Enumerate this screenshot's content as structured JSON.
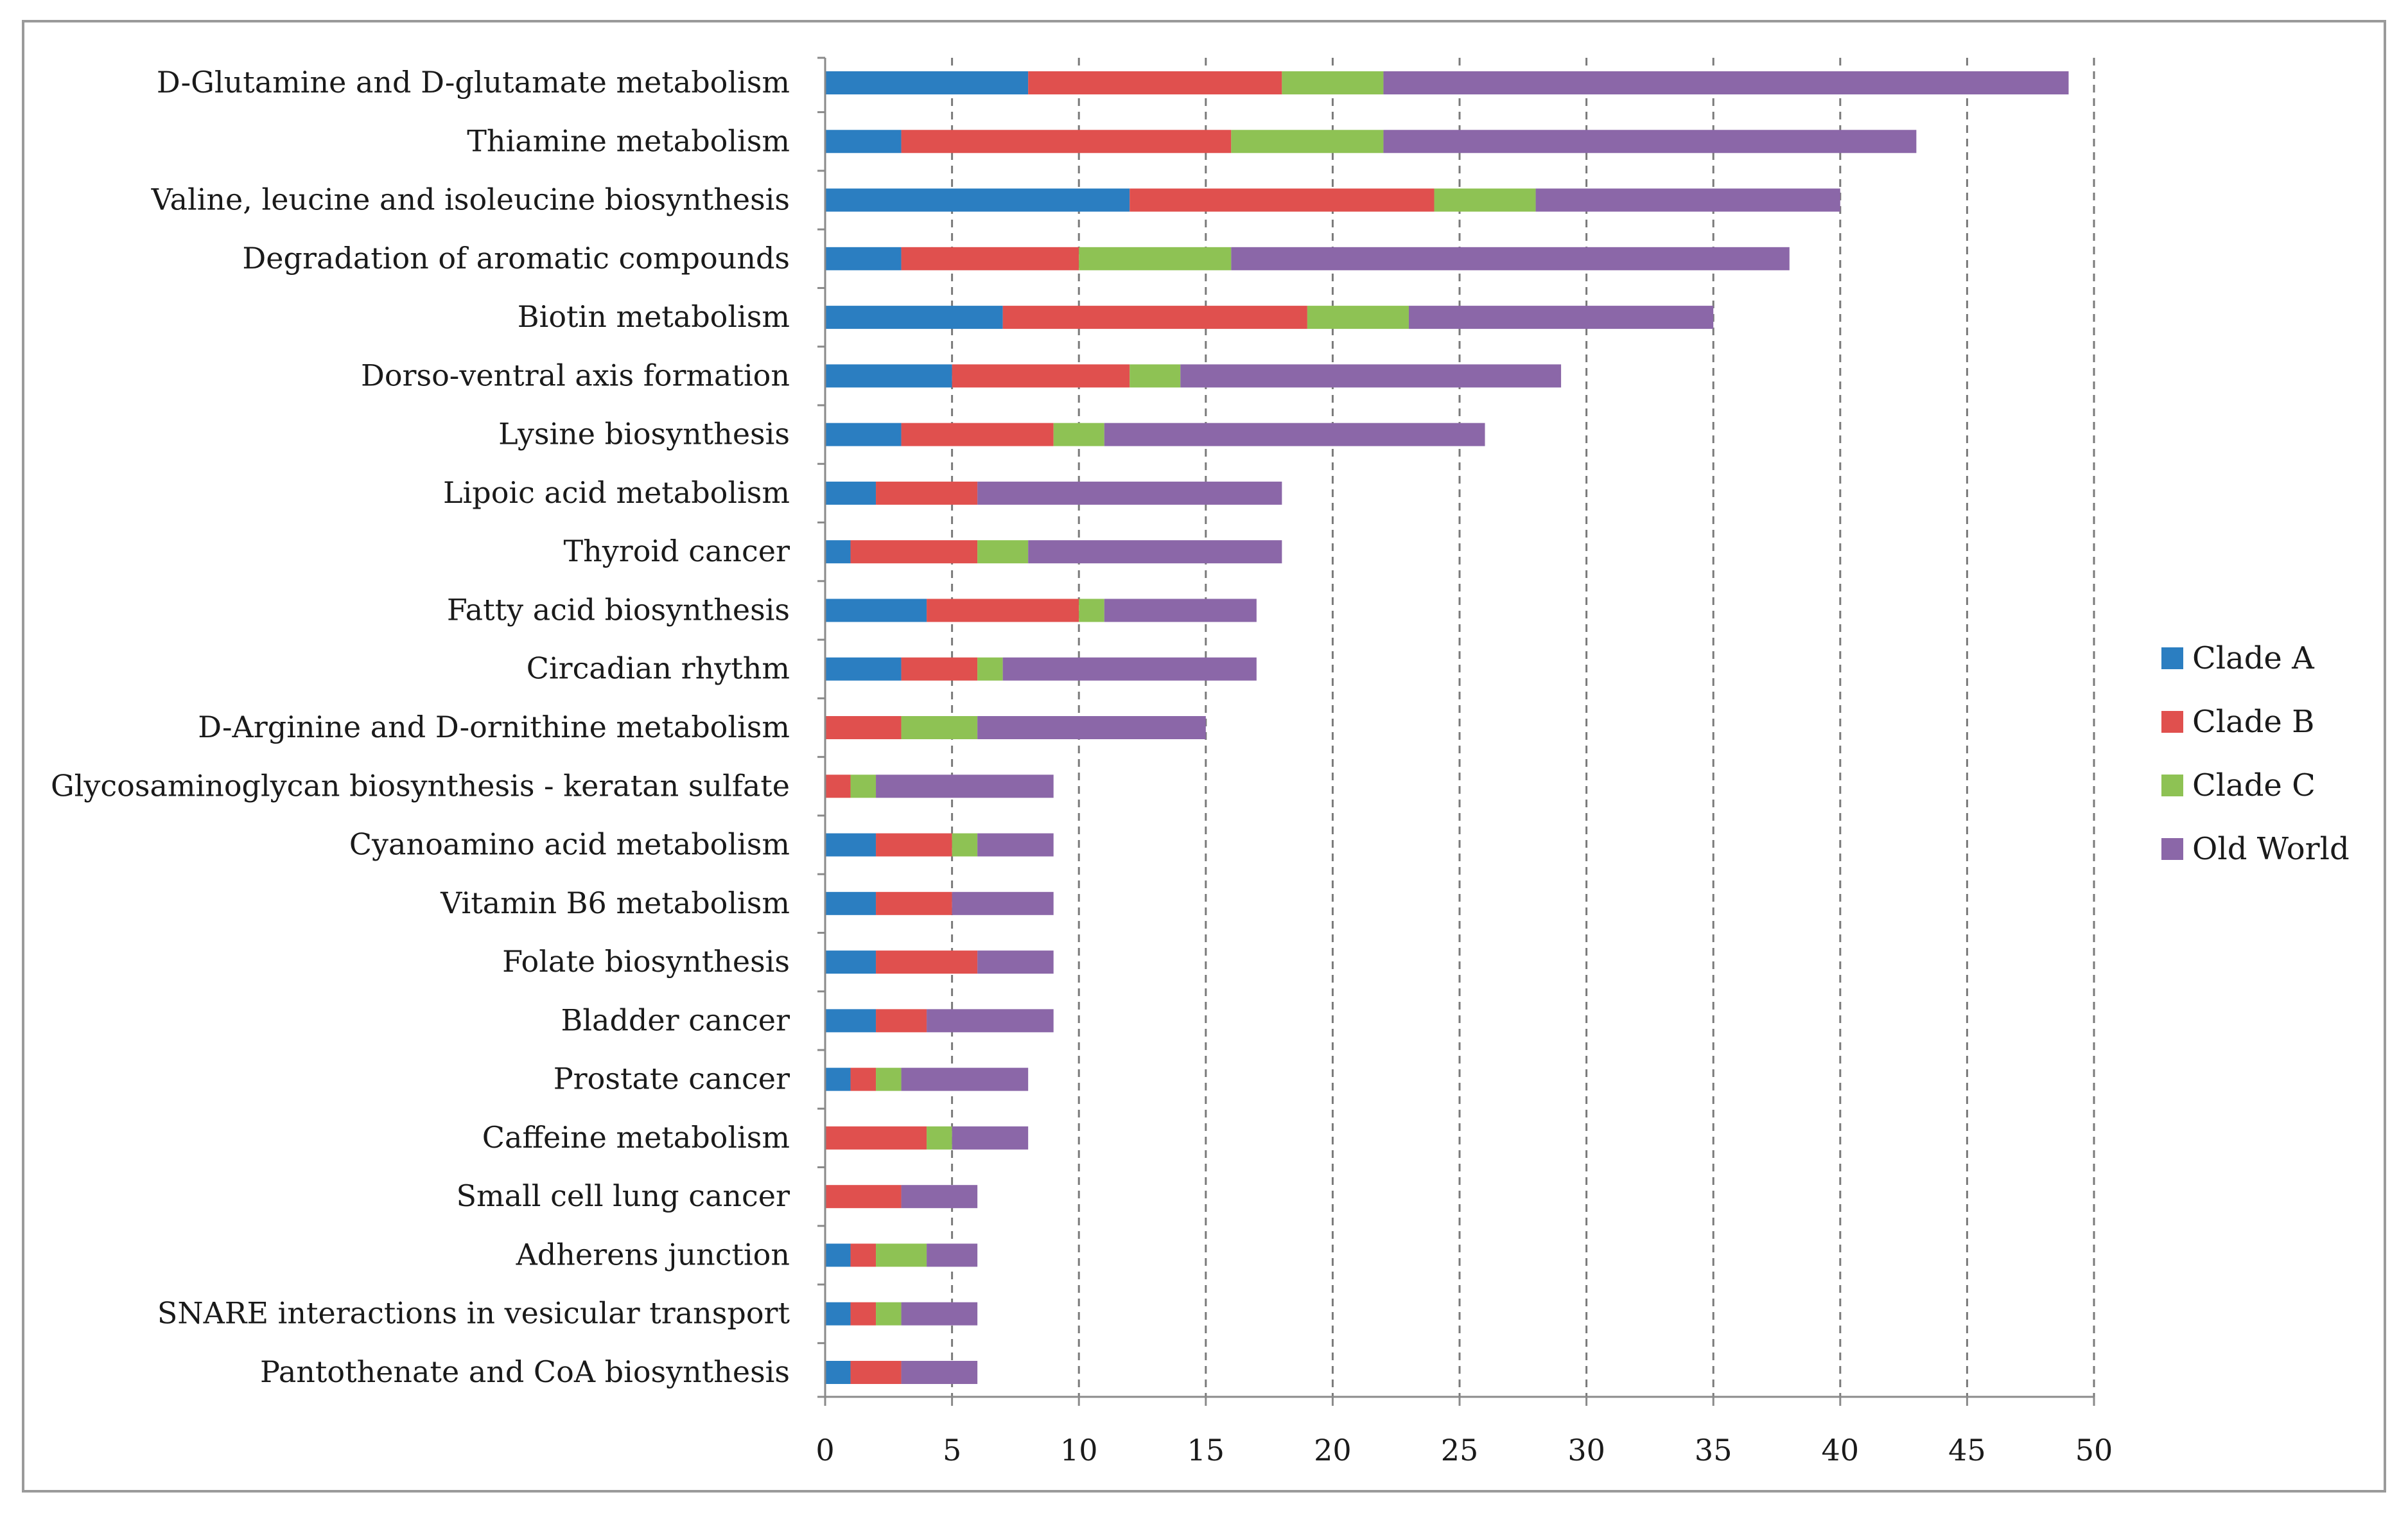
{
  "chart_data": {
    "type": "bar",
    "orientation": "horizontal",
    "stacked": true,
    "title": "",
    "xlabel": "",
    "ylabel": "",
    "xlim": [
      0,
      50
    ],
    "x_ticks": [
      0,
      5,
      10,
      15,
      20,
      25,
      30,
      35,
      40,
      45,
      50
    ],
    "grid": "vertical dashed",
    "legend_position": "right",
    "categories": [
      "D-Glutamine and D-glutamate metabolism",
      "Thiamine metabolism",
      "Valine, leucine and isoleucine biosynthesis",
      "Degradation of aromatic compounds",
      "Biotin metabolism",
      "Dorso-ventral axis formation",
      "Lysine biosynthesis",
      "Lipoic acid metabolism",
      "Thyroid cancer",
      "Fatty acid biosynthesis",
      "Circadian rhythm",
      "D-Arginine and D-ornithine metabolism",
      "Glycosaminoglycan biosynthesis - keratan sulfate",
      "Cyanoamino acid metabolism",
      "Vitamin B6 metabolism",
      "Folate biosynthesis",
      "Bladder cancer",
      "Prostate cancer",
      "Caffeine metabolism",
      "Small cell lung cancer",
      "Adherens junction",
      "SNARE interactions in vesicular transport",
      "Pantothenate and CoA biosynthesis"
    ],
    "series": [
      {
        "name": "Clade A",
        "color": "#2b7ec1",
        "values": [
          8,
          3,
          12,
          3,
          7,
          5,
          3,
          2,
          1,
          4,
          3,
          0,
          0,
          2,
          2,
          2,
          2,
          1,
          0,
          0,
          1,
          1,
          1
        ]
      },
      {
        "name": "Clade B",
        "color": "#e0504e",
        "values": [
          10,
          13,
          12,
          7,
          12,
          7,
          6,
          4,
          5,
          6,
          3,
          3,
          1,
          3,
          3,
          4,
          2,
          1,
          4,
          3,
          1,
          1,
          2
        ]
      },
      {
        "name": "Clade C",
        "color": "#8ec254",
        "values": [
          4,
          6,
          4,
          6,
          4,
          2,
          2,
          0,
          2,
          1,
          1,
          3,
          1,
          1,
          0,
          0,
          0,
          1,
          1,
          0,
          2,
          1,
          0
        ]
      },
      {
        "name": "Old World",
        "color": "#8b67a8",
        "values": [
          27,
          21,
          12,
          22,
          12,
          15,
          15,
          12,
          10,
          6,
          10,
          9,
          7,
          3,
          4,
          3,
          5,
          5,
          3,
          3,
          2,
          3,
          3
        ]
      }
    ]
  }
}
